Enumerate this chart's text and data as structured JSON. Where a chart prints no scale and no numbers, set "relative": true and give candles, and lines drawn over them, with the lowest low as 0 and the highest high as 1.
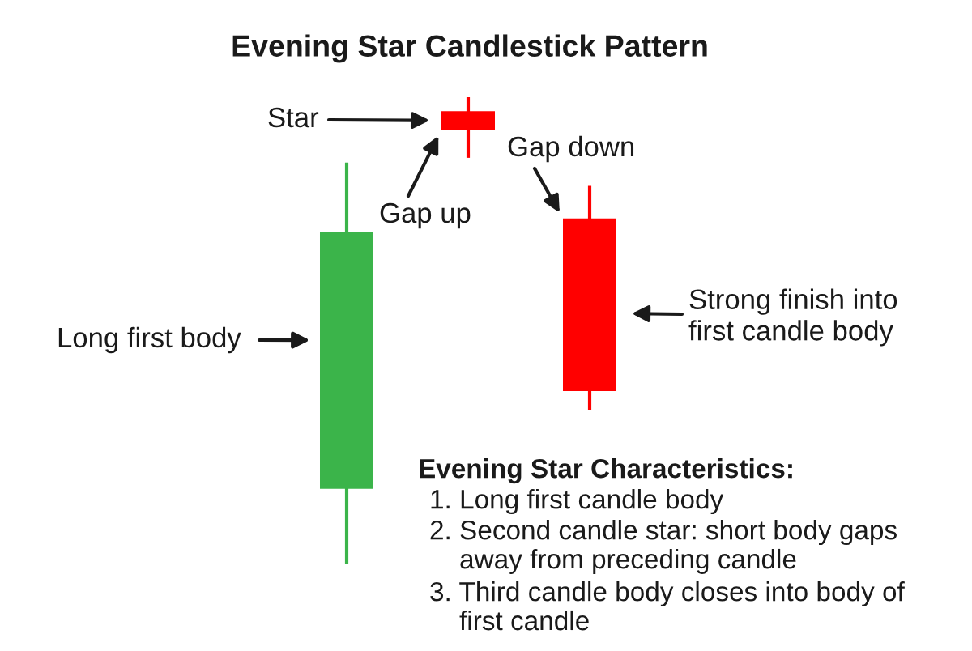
{
  "chart_data": {
    "type": "candlestick",
    "title": "Evening Star Candlestick Pattern",
    "relative": true,
    "categories": [
      null,
      null,
      null
    ],
    "ohlc": [
      [
        0.16,
        0.86,
        0,
        0.71
      ],
      [
        0.97,
        1,
        0.87,
        0.93
      ],
      [
        0.74,
        0.81,
        0.33,
        0.37
      ]
    ],
    "colors": [
      "#3bb44a",
      "#ff0000",
      "#ff0000"
    ],
    "annotations": [
      "Star",
      "Gap up",
      "Gap down",
      "Long first body",
      "Strong finish into\nfirst candle body",
      "Evening Star Characteristics:",
      "1. Long first candle body",
      "2. Second candle star: short body gaps\naway from preceding candle",
      "3. Third candle body closes into body of\nfirst candle"
    ]
  }
}
